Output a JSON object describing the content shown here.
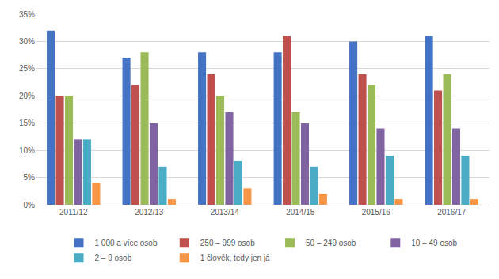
{
  "chart_data": {
    "type": "bar",
    "categories": [
      "2011/12",
      "2012/13",
      "2013/14",
      "2014/15",
      "2015/16",
      "2016/17"
    ],
    "series": [
      {
        "name": "1 000 a více osob",
        "color": "#4472c4",
        "values": [
          32,
          27,
          28,
          28,
          30,
          31
        ]
      },
      {
        "name": "250 – 999 osob",
        "color": "#c0504d",
        "values": [
          20,
          22,
          24,
          31,
          24,
          21
        ]
      },
      {
        "name": "50 – 249 osob",
        "color": "#9bbb59",
        "values": [
          20,
          28,
          20,
          17,
          22,
          24
        ]
      },
      {
        "name": "10 – 49 osob",
        "color": "#8064a2",
        "values": [
          12,
          15,
          17,
          15,
          14,
          14
        ]
      },
      {
        "name": "2 – 9 osob",
        "color": "#4bacc6",
        "values": [
          12,
          7,
          8,
          7,
          9,
          9
        ]
      },
      {
        "name": "1 člověk, tedy jen já",
        "color": "#f79646",
        "values": [
          4,
          1,
          3,
          2,
          1,
          1
        ]
      }
    ],
    "ylim": [
      0,
      35
    ],
    "yticks": [
      {
        "value": 0,
        "label": "0%"
      },
      {
        "value": 5,
        "label": "5%"
      },
      {
        "value": 10,
        "label": "10%"
      },
      {
        "value": 15,
        "label": "15%"
      },
      {
        "value": 20,
        "label": "20%"
      },
      {
        "value": 25,
        "label": "25%"
      },
      {
        "value": 30,
        "label": "30%"
      },
      {
        "value": 35,
        "label": "35%"
      }
    ],
    "grid": true,
    "legend": "bottom"
  }
}
